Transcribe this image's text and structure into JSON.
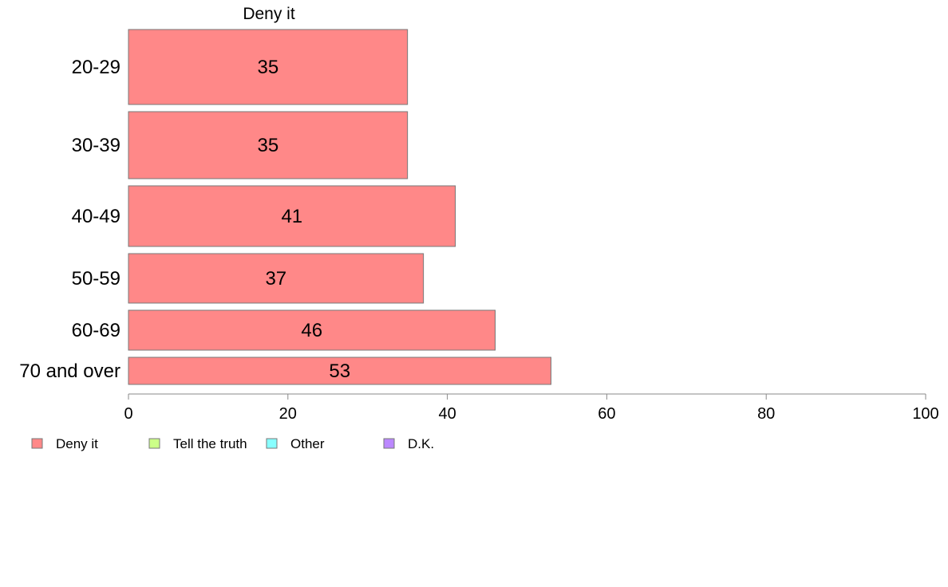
{
  "chart_data": {
    "type": "bar",
    "orientation": "horizontal",
    "title": "",
    "xlabel": "",
    "ylabel": "",
    "series_title": "Deny it",
    "categories": [
      "20-29",
      "30-39",
      "40-49",
      "50-59",
      "60-69",
      "70 and over"
    ],
    "series": [
      {
        "name": "Deny it",
        "values": [
          35,
          35,
          41,
          37,
          46,
          53
        ],
        "color": "#ff8888"
      }
    ],
    "xlim": [
      0,
      100
    ],
    "xticks": [
      0,
      20,
      40,
      60,
      80,
      100
    ],
    "grid": false,
    "legend": {
      "placement": "bottom-left",
      "items": [
        {
          "label": "Deny it",
          "color": "#ff8888"
        },
        {
          "label": "Tell the truth",
          "color": "#ccff88"
        },
        {
          "label": "Other",
          "color": "#88ffff"
        },
        {
          "label": "D.K.",
          "color": "#bb88ff"
        }
      ]
    },
    "bar_edge_color": "#777777",
    "axis_color": "#888888"
  }
}
